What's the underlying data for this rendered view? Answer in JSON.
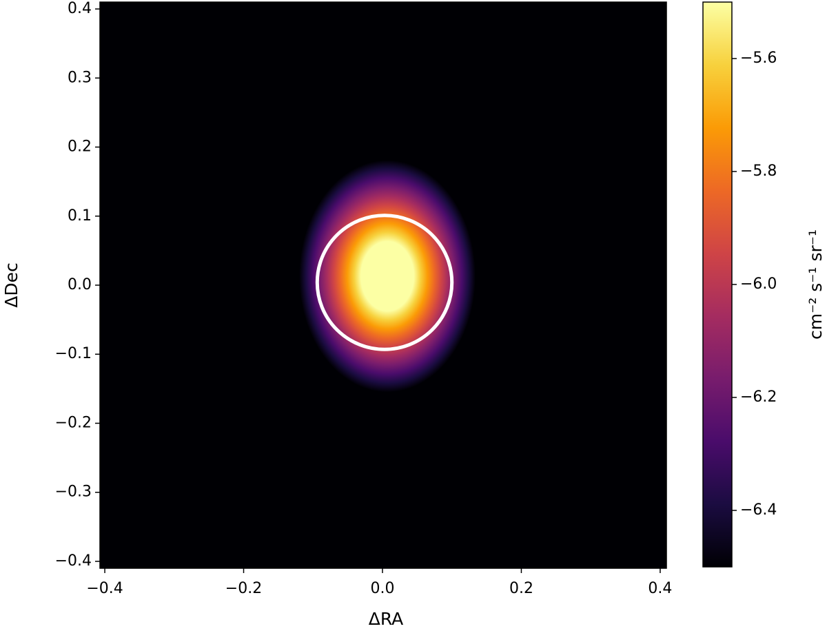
{
  "chart_data": {
    "type": "heatmap",
    "x_label": "ΔRA",
    "y_label": "ΔDec",
    "xlim": [
      -0.407,
      0.409
    ],
    "ylim": [
      -0.41,
      0.41
    ],
    "xticks": [
      {
        "value": -0.4,
        "label": "−0.4"
      },
      {
        "value": -0.2,
        "label": "−0.2"
      },
      {
        "value": 0,
        "label": "0.0"
      },
      0.2,
      0.4
    ],
    "yticks": [
      {
        "value": -0.4,
        "label": "−0.4"
      },
      {
        "value": -0.3,
        "label": "−0.3"
      },
      {
        "value": -0.2,
        "label": "−0.2"
      },
      {
        "value": -0.1,
        "label": "−0.1"
      },
      {
        "value": 0,
        "label": "0.0"
      },
      0.1,
      0.2,
      0.3,
      0.4
    ],
    "colormap": "inferno",
    "colorbar_label": "cm⁻² s⁻¹ sr⁻¹",
    "clim": [
      -6.5,
      -5.5
    ],
    "cticks": [
      {
        "value": -6.4,
        "label": "−6.4"
      },
      {
        "value": -6.2,
        "label": "−6.2"
      },
      {
        "value": -6.0,
        "label": "−6.0"
      },
      {
        "value": -5.8,
        "label": "−5.8"
      },
      {
        "value": -5.6,
        "label": "−5.6"
      }
    ],
    "source": {
      "center_x": 0.007,
      "center_y": 0.013,
      "radius_x": 0.127,
      "radius_y": 0.168
    },
    "contour": {
      "center_x": 0.003,
      "center_y": 0.004,
      "radius": 0.097,
      "color": "#ffffff"
    }
  }
}
